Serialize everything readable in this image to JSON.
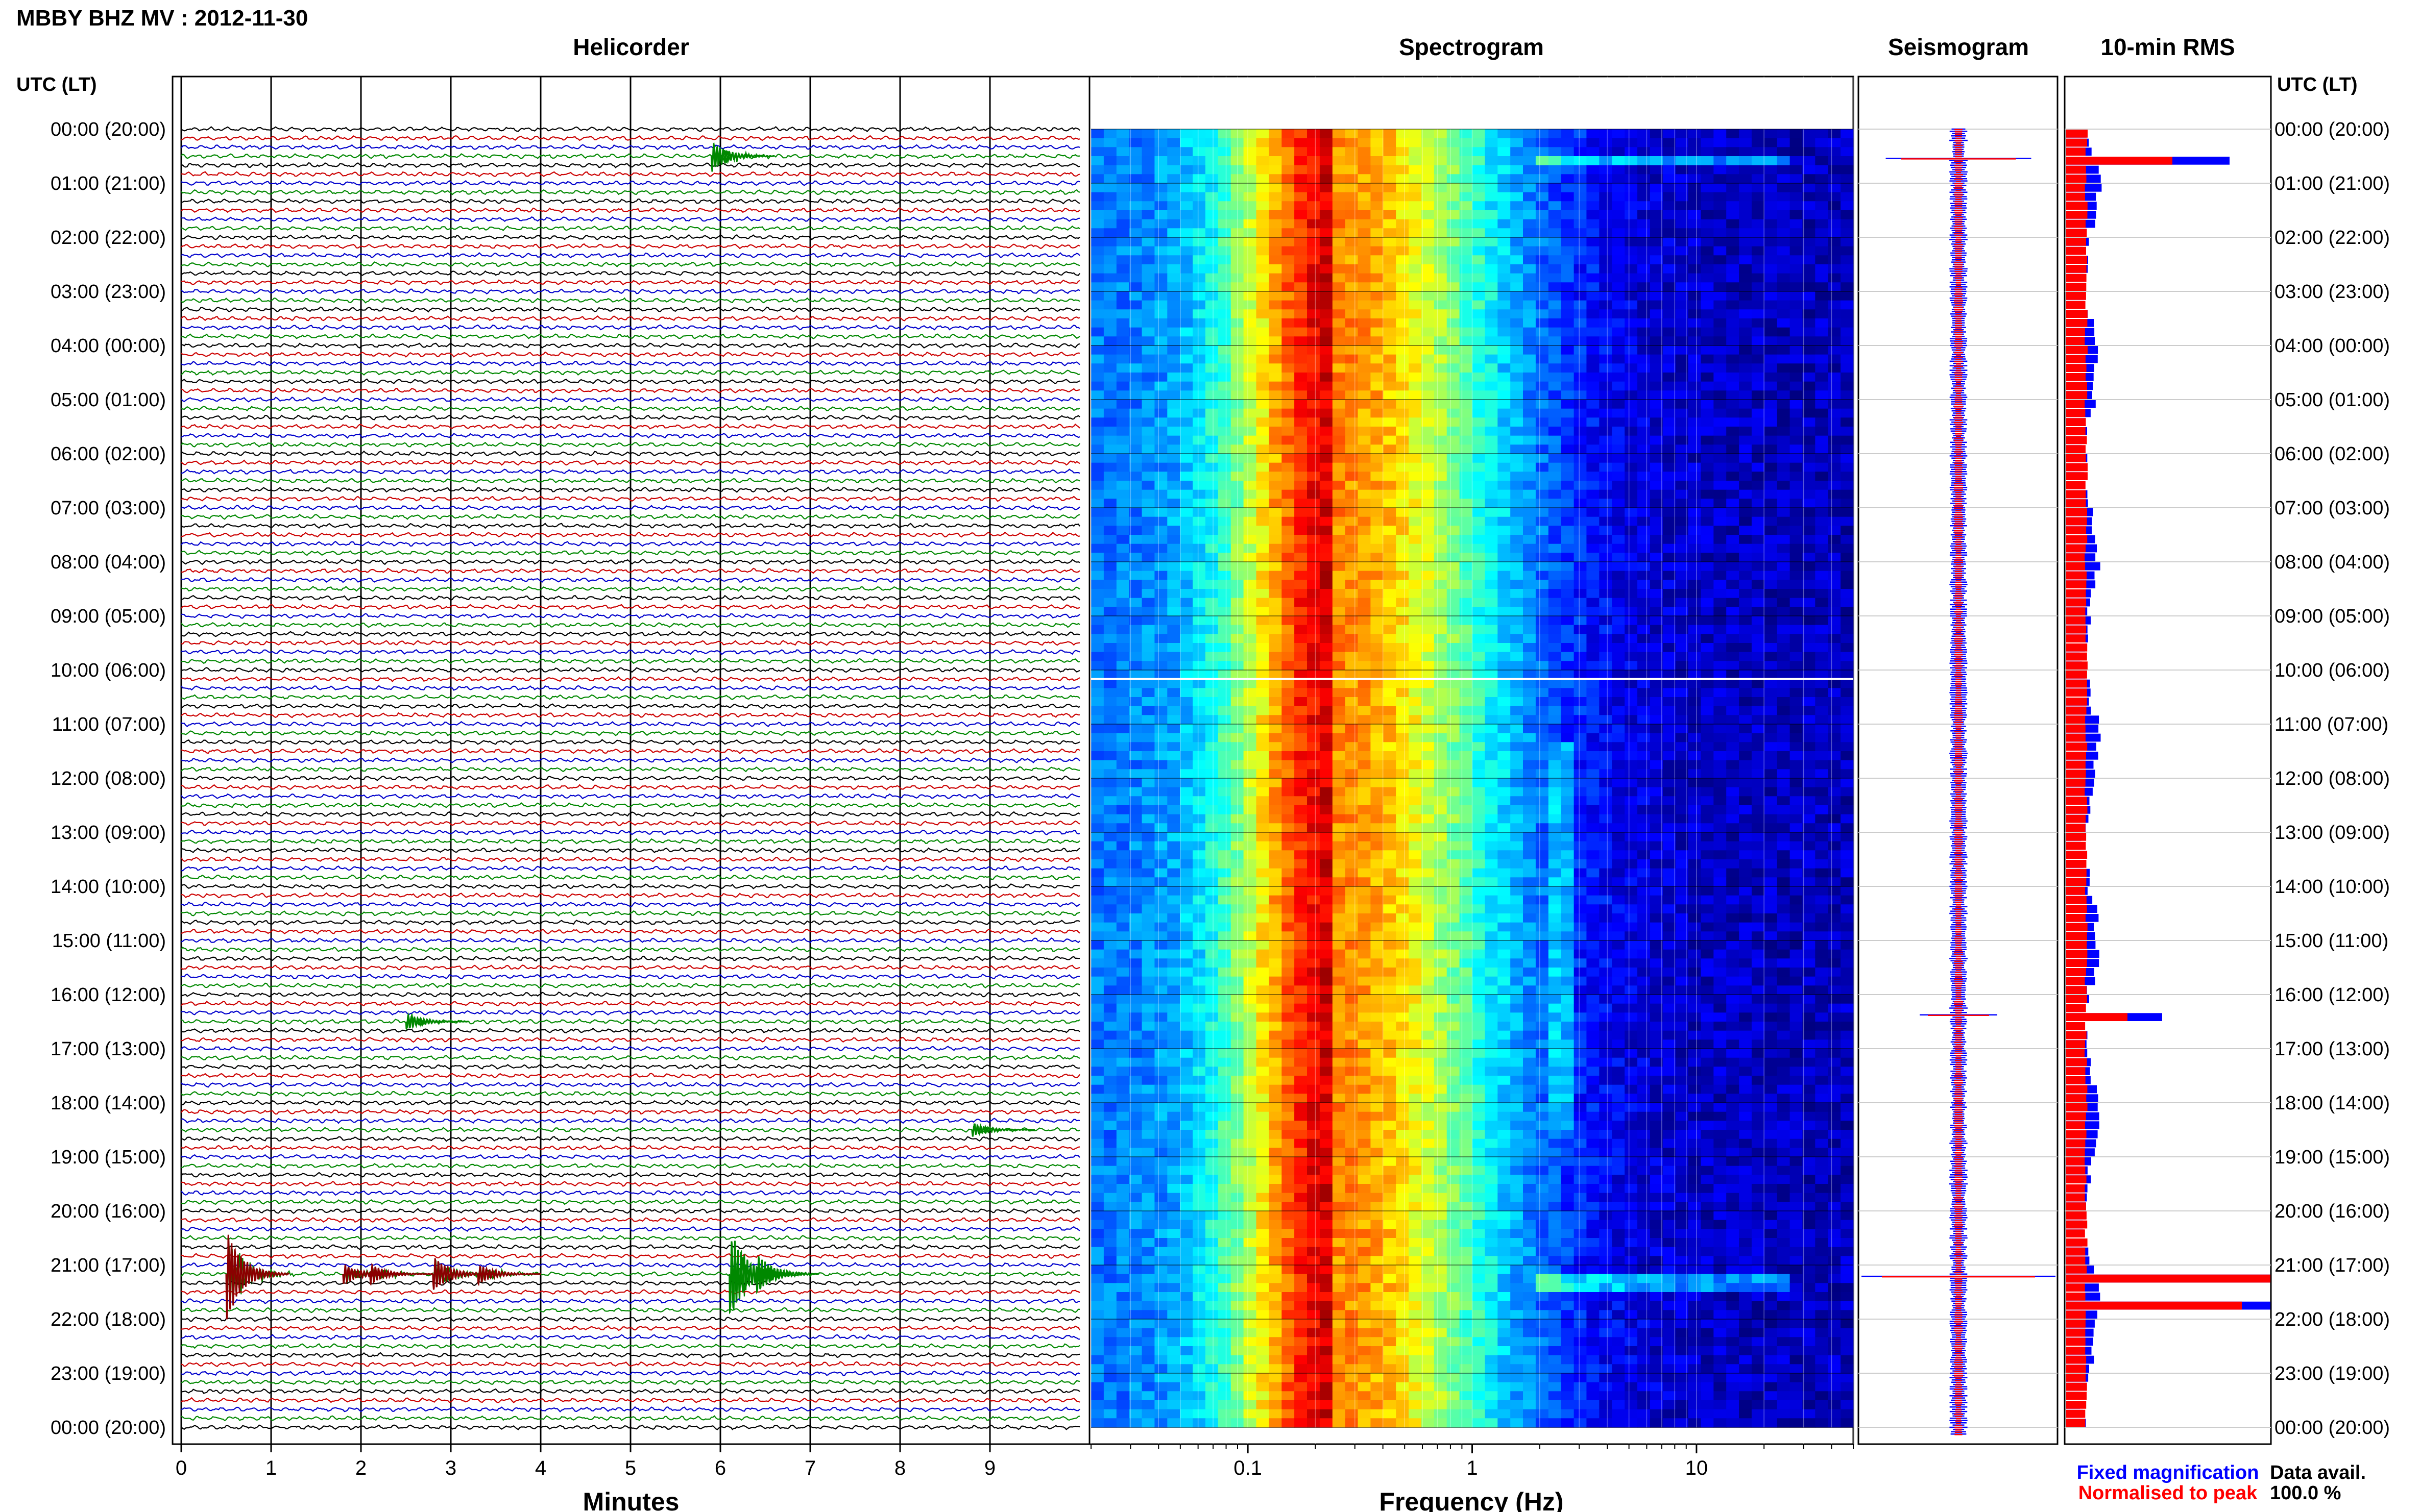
{
  "header": {
    "title": "MBBY BHZ MV : 2012-11-30",
    "utc_label_left": "UTC (LT)",
    "utc_label_right": "UTC (LT)"
  },
  "panels": {
    "helicorder_title": "Helicorder",
    "spectrogram_title": "Spectrogram",
    "seismogram_title": "Seismogram",
    "rms_title": "10-min RMS"
  },
  "time_labels": [
    "00:00 (20:00)",
    "01:00 (21:00)",
    "02:00 (22:00)",
    "03:00 (23:00)",
    "04:00 (00:00)",
    "05:00 (01:00)",
    "06:00 (02:00)",
    "07:00 (03:00)",
    "08:00 (04:00)",
    "09:00 (05:00)",
    "10:00 (06:00)",
    "11:00 (07:00)",
    "12:00 (08:00)",
    "13:00 (09:00)",
    "14:00 (10:00)",
    "15:00 (11:00)",
    "16:00 (12:00)",
    "17:00 (13:00)",
    "18:00 (14:00)",
    "19:00 (15:00)",
    "20:00 (16:00)",
    "21:00 (17:00)",
    "22:00 (18:00)",
    "23:00 (19:00)",
    "00:00 (20:00)"
  ],
  "legend": {
    "fixed": "Fixed magnification",
    "normalised": "Normalised to peak",
    "fixed_color": "#0000ff",
    "normalised_color": "#ff0000"
  },
  "data_avail": {
    "label": "Data avail.",
    "value": "100.0 %"
  },
  "colors": {
    "trace_cycle": [
      "#000000",
      "#cc0000",
      "#0000cc",
      "#008800"
    ],
    "event_black": "#000000",
    "event_red": "#8b0000",
    "event_green": "#008800"
  },
  "chart_data": [
    {
      "type": "line",
      "name": "Helicorder",
      "xlabel": "Minutes",
      "x_ticks": [
        "0",
        "1",
        "2",
        "3",
        "4",
        "5",
        "6",
        "7",
        "8",
        "9"
      ],
      "xlim": [
        0,
        10
      ],
      "rows_per_hour": 6,
      "total_rows": 144,
      "events": [
        {
          "row": 3,
          "minute": 5.9,
          "amplitude": 3.0,
          "color": "green"
        },
        {
          "row": 99,
          "minute": 2.5,
          "amplitude": 1.6,
          "color": "green"
        },
        {
          "row": 111,
          "minute": 8.8,
          "amplitude": 1.3,
          "color": "green"
        },
        {
          "row": 127,
          "minute": 0.5,
          "amplitude": 9.0,
          "color": "darkred"
        },
        {
          "row": 127,
          "minute": 1.8,
          "amplitude": 2.0,
          "color": "darkred"
        },
        {
          "row": 127,
          "minute": 2.1,
          "amplitude": 2.0,
          "color": "darkred"
        },
        {
          "row": 127,
          "minute": 2.8,
          "amplitude": 3.5,
          "color": "darkred"
        },
        {
          "row": 127,
          "minute": 3.3,
          "amplitude": 2.0,
          "color": "darkred"
        },
        {
          "row": 127,
          "minute": 6.1,
          "amplitude": 9.0,
          "color": "green"
        },
        {
          "row": 127,
          "minute": 6.4,
          "amplitude": 4.0,
          "color": "green"
        }
      ]
    },
    {
      "type": "heatmap",
      "name": "Spectrogram",
      "xlabel": "Frequency (Hz)",
      "x_scale": "log",
      "xlim": [
        0.02,
        50
      ],
      "x_ticks": [
        "0.1",
        "1",
        "10"
      ],
      "peak_frequency_hz": 0.25,
      "narrowband_lines_hz": [
        2.5
      ]
    },
    {
      "type": "line",
      "name": "Seismogram",
      "series": [
        {
          "name": "Fixed magnification"
        },
        {
          "name": "Normalised to peak"
        }
      ],
      "spikes": [
        {
          "row": 3,
          "size": 0.75
        },
        {
          "row": 98,
          "size": 0.4
        },
        {
          "row": 127,
          "size": 1.0
        }
      ]
    },
    {
      "type": "bar",
      "name": "10-min RMS",
      "series": [
        {
          "name": "Fixed magnification"
        },
        {
          "name": "Normalised to peak"
        }
      ],
      "spikes": [
        {
          "row": 3,
          "fixed": 0.8,
          "normalised": 0.52
        },
        {
          "row": 98,
          "fixed": 0.47,
          "normalised": 0.3
        },
        {
          "row": 127,
          "fixed": 1.0,
          "normalised": 1.0
        },
        {
          "row": 130,
          "fixed": 1.0,
          "normalised": 0.86
        }
      ]
    }
  ]
}
